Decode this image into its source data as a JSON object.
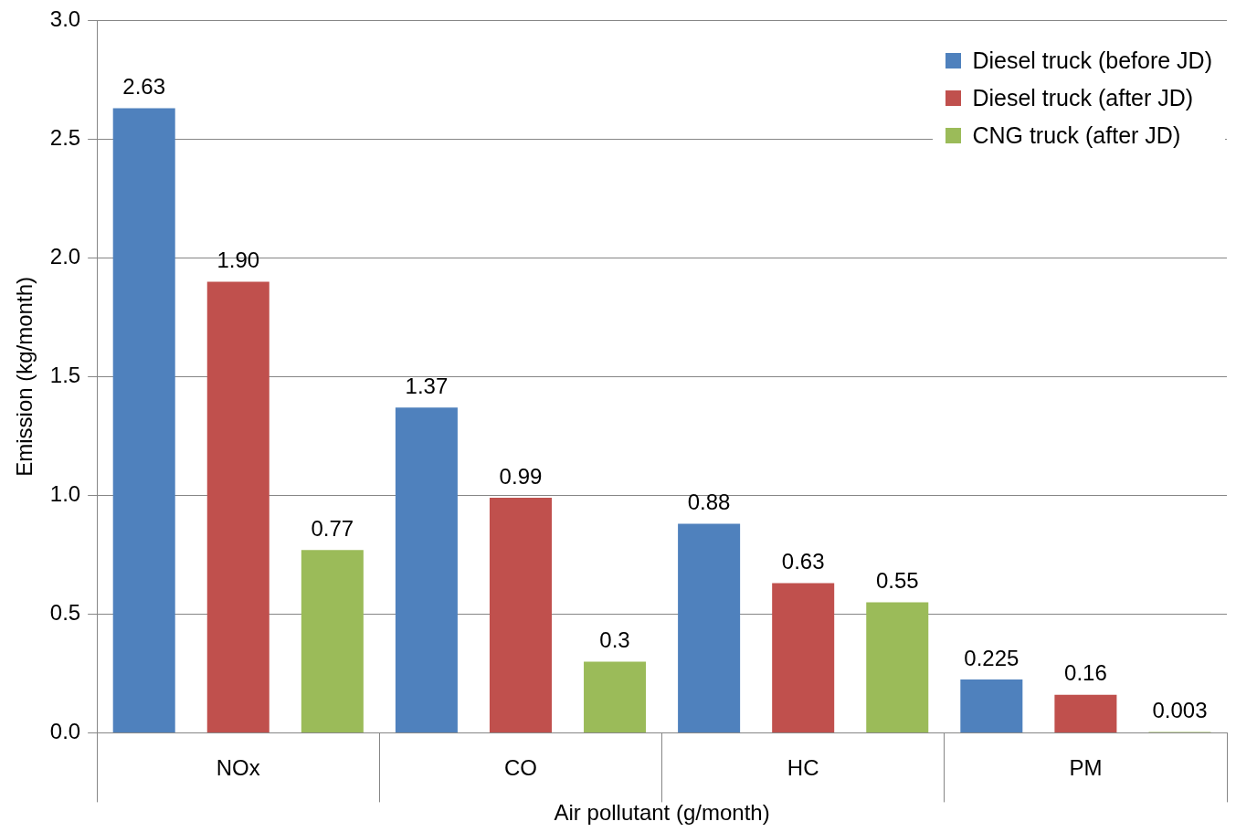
{
  "chart_data": {
    "type": "bar",
    "xlabel": "Air pollutant (g/month)",
    "ylabel": "Emission (kg/month)",
    "categories": [
      "NOx",
      "CO",
      "HC",
      "PM"
    ],
    "series": [
      {
        "name": "Diesel truck (before JD)",
        "color": "#4f81bd",
        "values": [
          2.63,
          1.37,
          0.88,
          0.225
        ],
        "value_labels": [
          "2.63",
          "1.37",
          "0.88",
          "0.225"
        ]
      },
      {
        "name": "Diesel truck (after JD)",
        "color": "#c0504d",
        "values": [
          1.9,
          0.99,
          0.63,
          0.16
        ],
        "value_labels": [
          "1.90",
          "0.99",
          "0.63",
          "0.16"
        ]
      },
      {
        "name": "CNG truck (after JD)",
        "color": "#9bbb59",
        "values": [
          0.77,
          0.3,
          0.55,
          0.003
        ],
        "value_labels": [
          "0.77",
          "0.3",
          "0.55",
          "0.003"
        ]
      }
    ],
    "ylim": [
      0,
      3
    ],
    "yticks": [
      {
        "value": 0,
        "label": "0.0"
      },
      {
        "value": 0.5,
        "label": "0.5"
      },
      {
        "value": 1,
        "label": "1.0"
      },
      {
        "value": 1.5,
        "label": "1.5"
      },
      {
        "value": 2,
        "label": "2.0"
      },
      {
        "value": 2.5,
        "label": "2.5"
      },
      {
        "value": 3,
        "label": "3.0"
      }
    ],
    "grid": "y",
    "legend": "top right"
  }
}
